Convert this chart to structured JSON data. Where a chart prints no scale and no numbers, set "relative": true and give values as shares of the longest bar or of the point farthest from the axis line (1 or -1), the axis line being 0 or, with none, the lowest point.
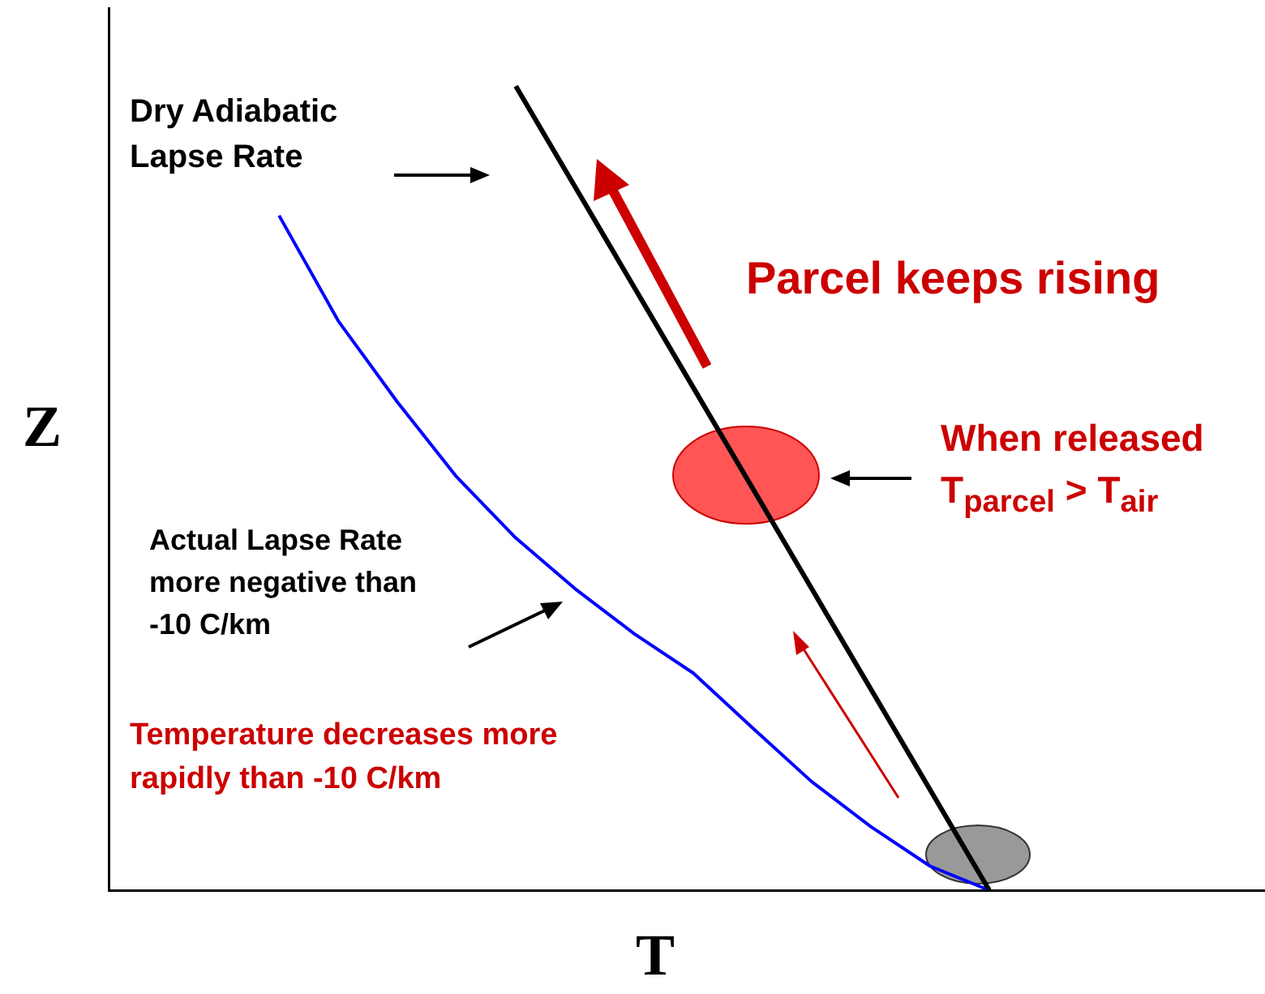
{
  "chart_data": {
    "type": "line",
    "relative": true,
    "xlabel": "T",
    "ylabel": "Z",
    "legend": false,
    "marker": "none",
    "line_style": "solid",
    "categories": [
      null,
      null,
      null,
      null,
      null,
      null,
      null,
      null,
      null,
      null,
      null,
      null,
      null
    ],
    "series": [
      {
        "color": "#000000",
        "values": [
          null,
          null,
          null,
          null,
          1,
          0.875,
          0.75,
          0.625,
          0.5,
          0.375,
          0.25,
          0.125,
          0
        ]
      },
      {
        "color": "#0000ff",
        "values": [
          0.839,
          0.708,
          0.607,
          0.514,
          0.438,
          0.375,
          0.319,
          0.27,
          0.202,
          0.135,
          0.079,
          0.03,
          0
        ]
      }
    ],
    "annotations": [
      "Dry Adiabatic\nLapse Rate",
      "Parcel keeps rising",
      "When released\nT$_{parcel}$ > T$_{air}$",
      "Actual Lapse Rate\nmore negative than\n-10 C/km",
      "Temperature decreases more\nrapidly than -10 C/km"
    ]
  }
}
